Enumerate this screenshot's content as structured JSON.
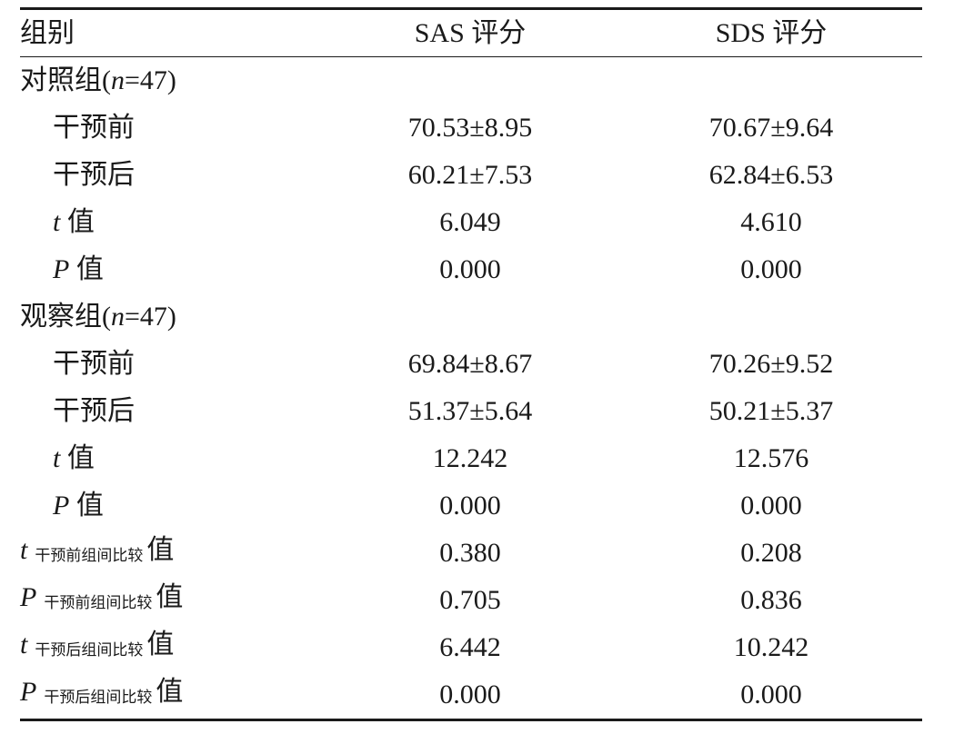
{
  "header": {
    "group": "组别",
    "sas": "SAS 评分",
    "sds": "SDS 评分"
  },
  "sections": [
    {
      "title_prefix": "对照组(",
      "title_n": "n",
      "title_suffix": "=47)",
      "rows": [
        {
          "label": "干预前",
          "sas": "70.53±8.95",
          "sds": "70.67±9.64"
        },
        {
          "label": "干预后",
          "sas": "60.21±7.53",
          "sds": "62.84±6.53"
        },
        {
          "sym": "t",
          "label": " 值",
          "sas": "6.049",
          "sds": "4.610"
        },
        {
          "sym": "P",
          "label": " 值",
          "sas": "0.000",
          "sds": "0.000"
        }
      ]
    },
    {
      "title_prefix": "观察组(",
      "title_n": "n",
      "title_suffix": "=47)",
      "rows": [
        {
          "label": "干预前",
          "sas": "69.84±8.67",
          "sds": "70.26±9.52"
        },
        {
          "label": "干预后",
          "sas": "51.37±5.64",
          "sds": "50.21±5.37"
        },
        {
          "sym": "t",
          "label": " 值",
          "sas": "12.242",
          "sds": "12.576"
        },
        {
          "sym": "P",
          "label": " 值",
          "sas": "0.000",
          "sds": "0.000"
        }
      ]
    }
  ],
  "comparisons": [
    {
      "sym": "t",
      "sub": "干预前组间比较",
      "label": "值",
      "sas": "0.380",
      "sds": "0.208"
    },
    {
      "sym": "P",
      "sub": "干预前组间比较",
      "label": "值",
      "sas": "0.705",
      "sds": "0.836"
    },
    {
      "sym": "t",
      "sub": "干预后组间比较",
      "label": "值",
      "sas": "6.442",
      "sds": "10.242"
    },
    {
      "sym": "P",
      "sub": "干预后组间比较",
      "label": "值",
      "sas": "0.000",
      "sds": "0.000"
    }
  ]
}
